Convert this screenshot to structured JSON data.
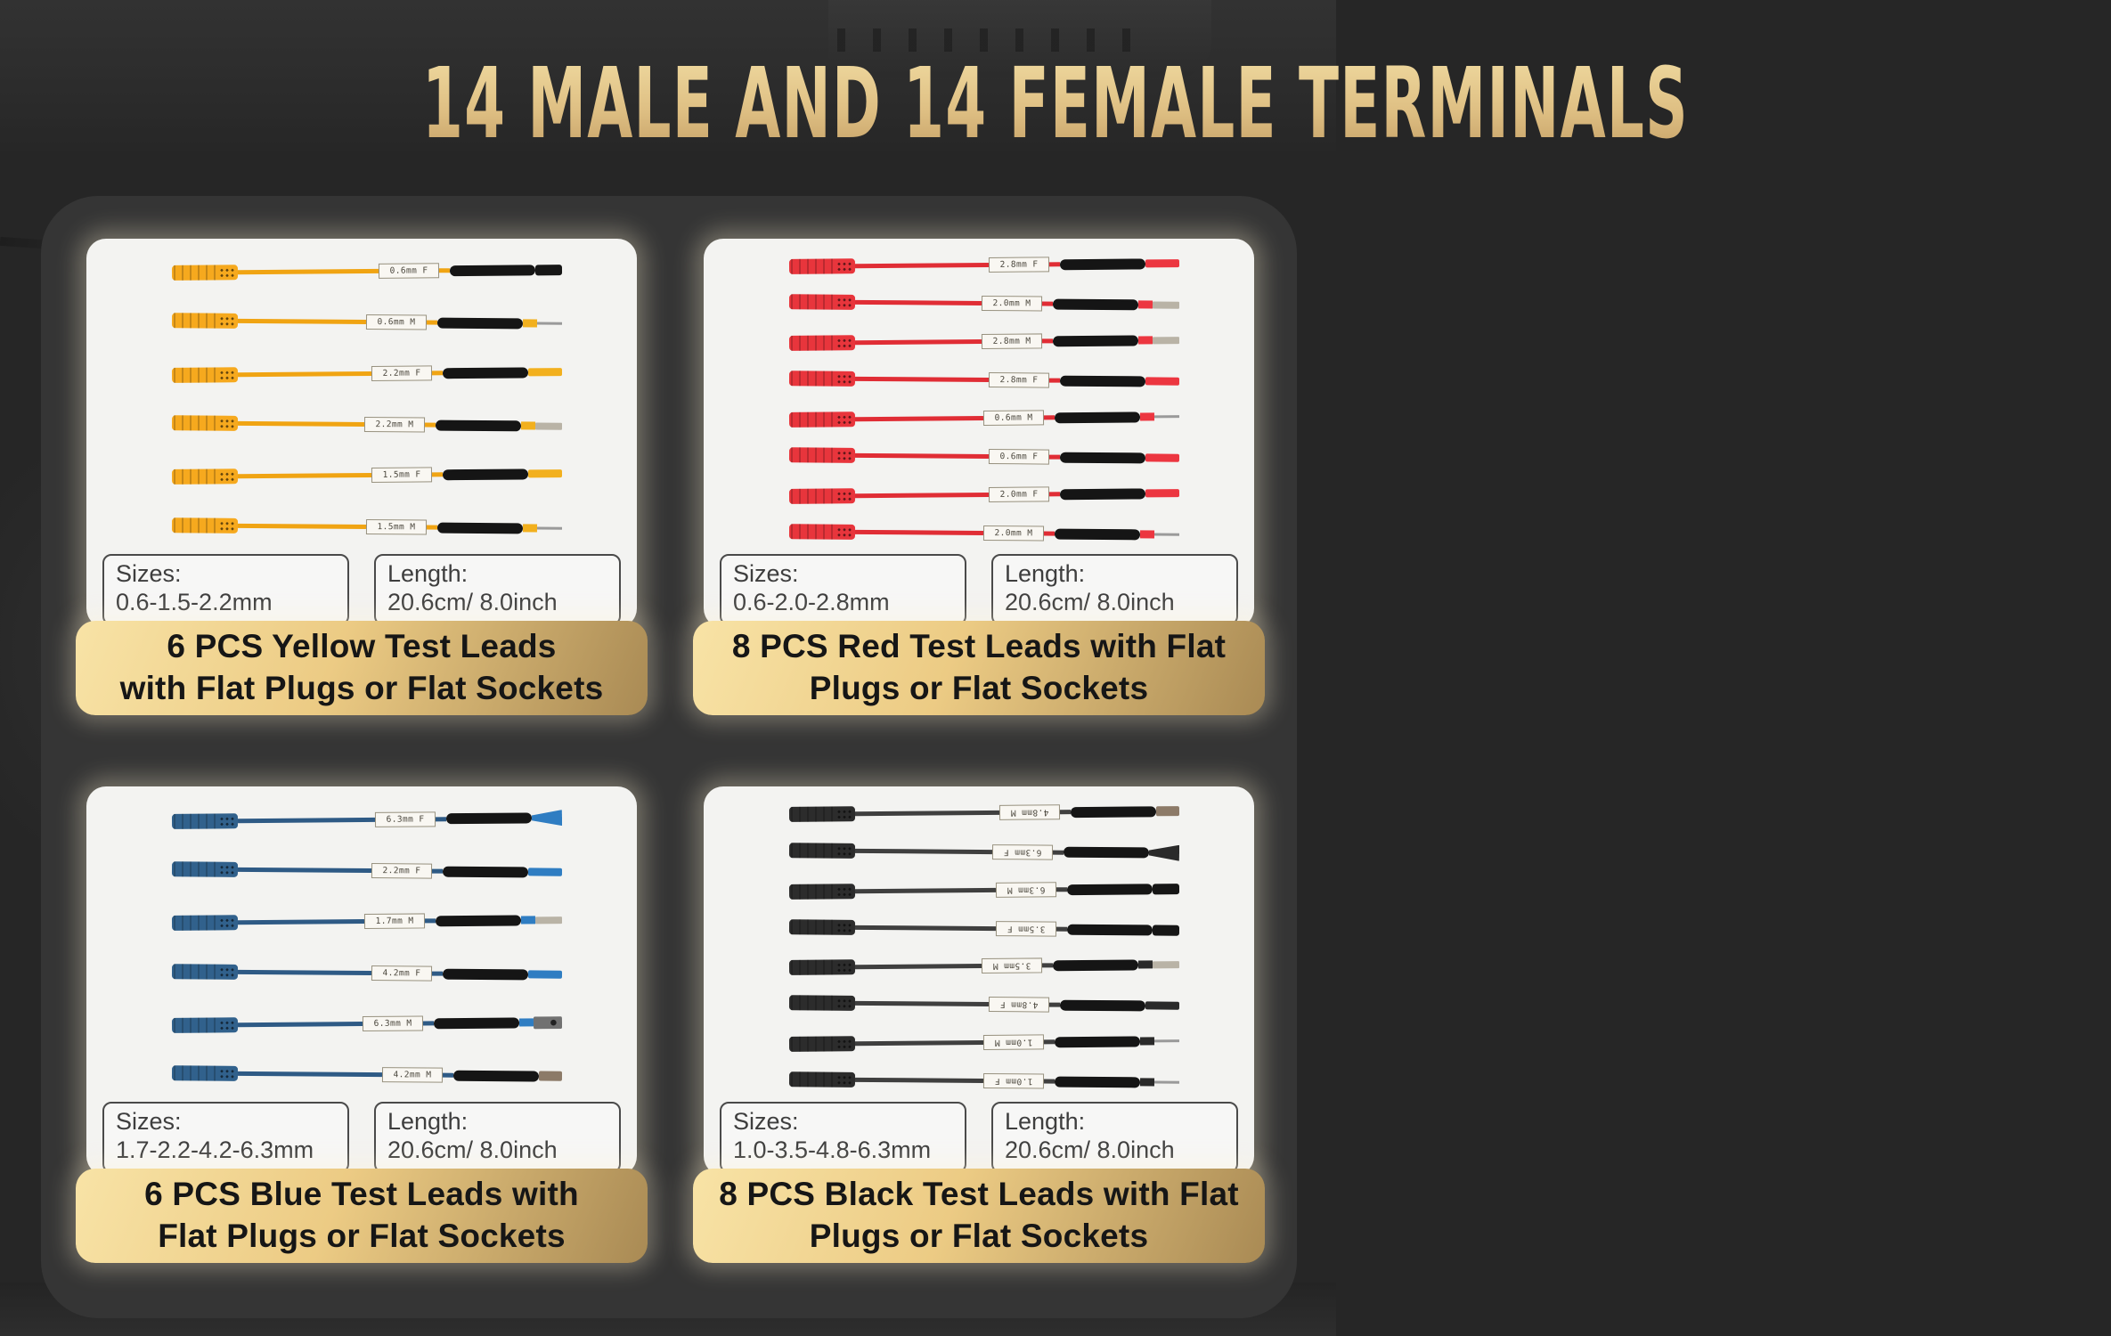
{
  "title": "14 MALE AND 14 FEMALE TERMINALS",
  "colors": {
    "page_bg": "#262626",
    "board_bg": "#353535",
    "panel_bg": "#f3f3f1",
    "title_light": "#efd99f",
    "title_dark": "#c5a066",
    "banner_l": "#f8e3a6",
    "banner_m": "#eccb84",
    "banner_d": "#a98a54"
  },
  "panels": [
    {
      "name": "yellow",
      "barrel_color": "#f6a91e",
      "wire_color": "#f0a413",
      "tip_color": "#f2b01e",
      "labels_upside_down": false,
      "leads": [
        {
          "label": "0.6mm F",
          "tip": "cap"
        },
        {
          "label": "0.6mm M",
          "tip": "pin"
        },
        {
          "label": "2.2mm F",
          "tip": "flat"
        },
        {
          "label": "2.2mm M",
          "tip": "blade"
        },
        {
          "label": "1.5mm F",
          "tip": "flat"
        },
        {
          "label": "1.5mm M",
          "tip": "pin"
        }
      ],
      "sizes_label": "Sizes:",
      "sizes_value": "0.6-1.5-2.2mm",
      "length_label": "Length:",
      "length_value": "20.6cm/ 8.0inch",
      "caption_line1": "6 PCS Yellow Test Leads",
      "caption_line2": "with Flat Plugs or Flat Sockets"
    },
    {
      "name": "red",
      "barrel_color": "#e8353c",
      "wire_color": "#e02d35",
      "tip_color": "#ec3640",
      "labels_upside_down": false,
      "leads": [
        {
          "label": "2.8mm F",
          "tip": "flat"
        },
        {
          "label": "2.0mm M",
          "tip": "blade"
        },
        {
          "label": "2.8mm M",
          "tip": "blade"
        },
        {
          "label": "2.8mm F",
          "tip": "flat"
        },
        {
          "label": "0.6mm M",
          "tip": "pin"
        },
        {
          "label": "0.6mm F",
          "tip": "flat"
        },
        {
          "label": "2.0mm F",
          "tip": "flat"
        },
        {
          "label": "2.0mm M",
          "tip": "pin"
        }
      ],
      "sizes_label": "Sizes:",
      "sizes_value": "0.6-2.0-2.8mm",
      "length_label": "Length:",
      "length_value": "20.6cm/ 8.0inch",
      "caption_line1": "8 PCS Red Test Leads with Flat",
      "caption_line2": "Plugs or Flat Sockets"
    },
    {
      "name": "blue",
      "barrel_color": "#31618c",
      "wire_color": "#2e5a85",
      "tip_color": "#2f7dc2",
      "labels_upside_down": false,
      "leads": [
        {
          "label": "6.3mm F",
          "tip": "spade"
        },
        {
          "label": "2.2mm F",
          "tip": "flat"
        },
        {
          "label": "1.7mm M",
          "tip": "blade"
        },
        {
          "label": "4.2mm F",
          "tip": "flat"
        },
        {
          "label": "6.3mm M",
          "tip": "socket"
        },
        {
          "label": "4.2mm M",
          "tip": "ferrule"
        }
      ],
      "sizes_label": "Sizes:",
      "sizes_value": "1.7-2.2-4.2-6.3mm",
      "length_label": "Length:",
      "length_value": "20.6cm/ 8.0inch",
      "caption_line1": "6 PCS Blue Test Leads with",
      "caption_line2": "Flat Plugs or Flat Sockets"
    },
    {
      "name": "black",
      "barrel_color": "#2c2c2c",
      "wire_color": "#3f3f3f",
      "tip_color": "#2a2a2a",
      "labels_upside_down": true,
      "leads": [
        {
          "label": "4.8mm M",
          "tip": "ferrule"
        },
        {
          "label": "6.3mm F",
          "tip": "spade"
        },
        {
          "label": "6.3mm M",
          "tip": "cap"
        },
        {
          "label": "3.5mm F",
          "tip": "cap"
        },
        {
          "label": "3.5mm M",
          "tip": "blade"
        },
        {
          "label": "4.8mm F",
          "tip": "flat"
        },
        {
          "label": "1.0mm M",
          "tip": "pin"
        },
        {
          "label": "1.0mm F",
          "tip": "pin"
        }
      ],
      "sizes_label": "Sizes:",
      "sizes_value": "1.0-3.5-4.8-6.3mm",
      "length_label": "Length:",
      "length_value": "20.6cm/ 8.0inch",
      "caption_line1": "8 PCS Black Test Leads with Flat",
      "caption_line2": "Plugs or Flat Sockets"
    }
  ]
}
